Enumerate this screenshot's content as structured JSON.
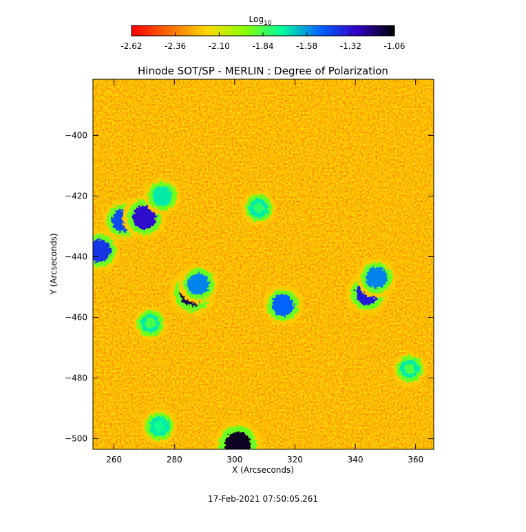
{
  "chart_data": {
    "type": "heatmap",
    "title": "Hinode SOT/SP - MERLIN : Degree of Polarization",
    "xlabel": "X (Arcseconds)",
    "ylabel": "Y (Arcseconds)",
    "xlim": [
      253,
      366
    ],
    "ylim": [
      -503.5,
      -381.5
    ],
    "x_ticks": [
      260,
      280,
      300,
      320,
      340,
      360
    ],
    "y_ticks": [
      -400,
      -420,
      -440,
      -460,
      -480,
      -500
    ],
    "colorbar": {
      "label_base": "Log",
      "label_sub": "10",
      "min": -2.62,
      "max": -1.06,
      "ticks": [
        "-2.62",
        "-2.36",
        "-2.10",
        "-1.84",
        "-1.58",
        "-1.32",
        "-1.06"
      ],
      "stops": [
        "#ff0000",
        "#ff6a00",
        "#ffd800",
        "#8cff00",
        "#00ff9c",
        "#0066ff",
        "#3200c8",
        "#000000"
      ]
    },
    "features": [
      {
        "x": 263,
        "y": -428,
        "value": -1.45
      },
      {
        "x": 270,
        "y": -427,
        "value": -1.3
      },
      {
        "x": 255,
        "y": -438,
        "value": -1.4
      },
      {
        "x": 276,
        "y": -420,
        "value": -1.7
      },
      {
        "x": 286,
        "y": -452,
        "value": -1.15
      },
      {
        "x": 288,
        "y": -449,
        "value": -1.55
      },
      {
        "x": 316,
        "y": -456,
        "value": -1.5
      },
      {
        "x": 344,
        "y": -452,
        "value": -1.35
      },
      {
        "x": 347,
        "y": -447,
        "value": -1.55
      },
      {
        "x": 301,
        "y": -502,
        "value": -1.1
      },
      {
        "x": 308,
        "y": -424,
        "value": -1.8
      },
      {
        "x": 275,
        "y": -496,
        "value": -1.75
      },
      {
        "x": 272,
        "y": -462,
        "value": -1.85
      },
      {
        "x": 358,
        "y": -477,
        "value": -1.85
      }
    ],
    "timestamp": "17-Feb-2021 07:50:05.261"
  }
}
